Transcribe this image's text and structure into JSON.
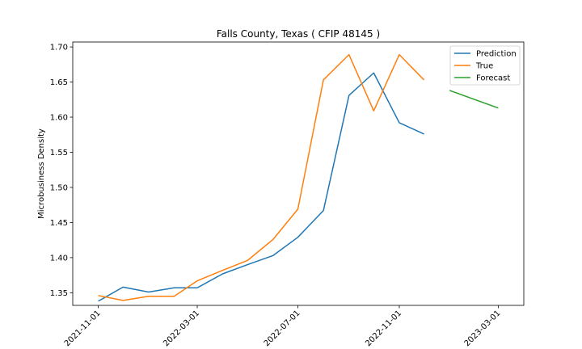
{
  "chart_data": {
    "type": "line",
    "title": "Falls County, Texas ( CFIP 48145 )",
    "xlabel": "",
    "ylabel": "Microbusiness Density",
    "x_ticks": [
      "2021-11-01",
      "2022-03-01",
      "2022-07-01",
      "2022-11-01",
      "2023-03-01"
    ],
    "y_ticks": [
      "1.35",
      "1.40",
      "1.45",
      "1.50",
      "1.55",
      "1.60",
      "1.65",
      "1.70"
    ],
    "ylim": [
      1.332,
      1.707
    ],
    "xlim": [
      "2021-10-01",
      "2023-04-01"
    ],
    "legend_position": "top-right",
    "series": [
      {
        "name": "Prediction",
        "color": "#1f77b4",
        "x": [
          "2021-11-01",
          "2021-12-01",
          "2022-01-01",
          "2022-02-01",
          "2022-03-01",
          "2022-04-01",
          "2022-05-01",
          "2022-06-01",
          "2022-07-01",
          "2022-08-01",
          "2022-09-01",
          "2022-10-01",
          "2022-11-01",
          "2022-12-01"
        ],
        "y": [
          1.338,
          1.358,
          1.351,
          1.357,
          1.357,
          1.377,
          1.39,
          1.403,
          1.429,
          1.467,
          1.631,
          1.663,
          1.592,
          1.576
        ]
      },
      {
        "name": "True",
        "color": "#ff7f0e",
        "x": [
          "2021-11-01",
          "2021-12-01",
          "2022-01-01",
          "2022-02-01",
          "2022-03-01",
          "2022-04-01",
          "2022-05-01",
          "2022-06-01",
          "2022-07-01",
          "2022-08-01",
          "2022-09-01",
          "2022-10-01",
          "2022-11-01",
          "2022-12-01"
        ],
        "y": [
          1.346,
          1.339,
          1.345,
          1.345,
          1.367,
          1.382,
          1.396,
          1.426,
          1.469,
          1.653,
          1.689,
          1.609,
          1.689,
          1.653
        ]
      },
      {
        "name": "Forecast",
        "color": "#2ca02c",
        "x": [
          "2023-01-01",
          "2023-03-01"
        ],
        "y": [
          1.638,
          1.613
        ]
      }
    ]
  }
}
